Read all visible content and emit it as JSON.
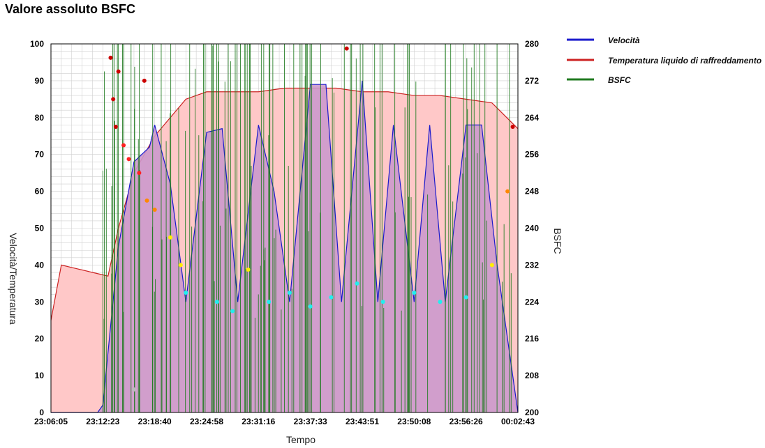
{
  "title": "Valore assoluto BSFC",
  "colors": {
    "speed": "#1a1acc",
    "temperature": "#cc2222",
    "temperature_fill": "#ffc8c8",
    "speed_fill": "#cc99cc",
    "bsfc": "#1f7a1f",
    "grid": "#cfcfcf",
    "dot_darkred": "#cc0000",
    "dot_red": "#ff2222",
    "dot_orange": "#ff8800",
    "dot_yellow": "#ffee00",
    "dot_cyan": "#22eeee",
    "dot_gray": "#bbbbbb"
  },
  "chart_data": {
    "type": "area",
    "title": "Valore assoluto BSFC",
    "xlabel": "Tempo",
    "ylabel": "Velocità/Temperatura",
    "y2label": "BSFC",
    "x_ticks": [
      "23:06:05",
      "23:12:23",
      "23:18:40",
      "23:24:58",
      "23:31:16",
      "23:37:33",
      "23:43:51",
      "23:50:08",
      "23:56:26",
      "00:02:43"
    ],
    "y_ticks": [
      0,
      10,
      20,
      30,
      40,
      50,
      60,
      70,
      80,
      90,
      100
    ],
    "y2_ticks": [
      200,
      208,
      216,
      224,
      232,
      240,
      248,
      256,
      264,
      272,
      280
    ],
    "ylim": [
      0,
      100
    ],
    "y2lim": [
      200,
      280
    ],
    "grid": true,
    "legend_position": "right",
    "legend": [
      "Velocità",
      "Temperatura liquido di raffreddamento",
      "BSFC"
    ],
    "series": [
      {
        "name": "Velocità",
        "x": [
          0,
          0.9,
          1,
          1.3,
          1.6,
          1.9,
          2,
          2.3,
          2.6,
          3,
          3.3,
          3.6,
          4,
          4.3,
          4.6,
          5,
          5.3,
          5.6,
          6,
          6.3,
          6.6,
          7,
          7.3,
          7.6,
          8,
          8.3,
          8.6,
          9
        ],
        "values": [
          0,
          0,
          2,
          45,
          68,
          72,
          78,
          62,
          30,
          76,
          77,
          30,
          78,
          60,
          30,
          89,
          89,
          30,
          90,
          30,
          78,
          30,
          78,
          30,
          78,
          78,
          40,
          0
        ]
      },
      {
        "name": "Temperatura liquido di raffreddamento",
        "x": [
          0,
          0.2,
          0.5,
          0.8,
          1.1,
          1.3,
          1.6,
          2,
          2.3,
          2.6,
          3,
          3.5,
          4,
          4.5,
          5,
          5.5,
          6,
          6.5,
          7,
          7.5,
          8,
          8.5,
          9
        ],
        "values": [
          25,
          40,
          39,
          38,
          37,
          50,
          65,
          75,
          80,
          85,
          87,
          87,
          87,
          88,
          88,
          88,
          87,
          87,
          86,
          86,
          85,
          84,
          77
        ]
      }
    ],
    "bsfc_points": [
      {
        "x": 1.15,
        "y": 277,
        "c": "dot_darkred"
      },
      {
        "x": 1.2,
        "y": 268,
        "c": "dot_darkred"
      },
      {
        "x": 1.25,
        "y": 262,
        "c": "dot_darkred"
      },
      {
        "x": 1.3,
        "y": 274,
        "c": "dot_darkred"
      },
      {
        "x": 1.4,
        "y": 258,
        "c": "dot_red"
      },
      {
        "x": 1.5,
        "y": 255,
        "c": "dot_red"
      },
      {
        "x": 1.7,
        "y": 252,
        "c": "dot_red"
      },
      {
        "x": 1.85,
        "y": 246,
        "c": "dot_orange"
      },
      {
        "x": 2.0,
        "y": 244,
        "c": "dot_orange"
      },
      {
        "x": 2.3,
        "y": 238,
        "c": "dot_yellow"
      },
      {
        "x": 2.5,
        "y": 232,
        "c": "dot_yellow"
      },
      {
        "x": 2.6,
        "y": 226,
        "c": "dot_cyan"
      },
      {
        "x": 3.2,
        "y": 224,
        "c": "dot_cyan"
      },
      {
        "x": 3.5,
        "y": 222,
        "c": "dot_cyan"
      },
      {
        "x": 3.8,
        "y": 231,
        "c": "dot_yellow"
      },
      {
        "x": 4.2,
        "y": 224,
        "c": "dot_cyan"
      },
      {
        "x": 4.6,
        "y": 226,
        "c": "dot_cyan"
      },
      {
        "x": 5.0,
        "y": 223,
        "c": "dot_cyan"
      },
      {
        "x": 5.4,
        "y": 225,
        "c": "dot_cyan"
      },
      {
        "x": 5.9,
        "y": 228,
        "c": "dot_cyan"
      },
      {
        "x": 6.4,
        "y": 224,
        "c": "dot_cyan"
      },
      {
        "x": 7.0,
        "y": 226,
        "c": "dot_cyan"
      },
      {
        "x": 7.5,
        "y": 224,
        "c": "dot_cyan"
      },
      {
        "x": 8.0,
        "y": 225,
        "c": "dot_cyan"
      },
      {
        "x": 8.5,
        "y": 232,
        "c": "dot_yellow"
      },
      {
        "x": 8.8,
        "y": 248,
        "c": "dot_orange"
      },
      {
        "x": 8.9,
        "y": 262,
        "c": "dot_darkred"
      },
      {
        "x": 5.7,
        "y": 279,
        "c": "dot_darkred"
      },
      {
        "x": 1.8,
        "y": 272,
        "c": "dot_darkred"
      },
      {
        "x": 1.6,
        "y": 205,
        "c": "dot_gray"
      }
    ]
  }
}
